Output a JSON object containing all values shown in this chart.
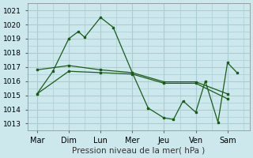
{
  "background_color": "#cce8ec",
  "grid_color": "#aacdd4",
  "line_color": "#1a5c1a",
  "xlabel": "Pression niveau de la mer( hPa )",
  "x_labels": [
    "Mar",
    "Dim",
    "Lun",
    "Mer",
    "Jeu",
    "Ven",
    "Sam"
  ],
  "ylim": [
    1012.5,
    1021.5
  ],
  "yticks": [
    1013,
    1014,
    1015,
    1016,
    1017,
    1018,
    1019,
    1020,
    1021
  ],
  "line1_x": [
    0,
    0.5,
    1.0,
    1.3,
    1.5,
    2.0,
    2.4,
    3.0,
    3.5,
    4.0,
    4.3,
    4.6,
    5.0,
    5.3,
    5.7,
    6.0,
    6.3
  ],
  "line1_y": [
    1015.1,
    1016.7,
    1019.0,
    1019.5,
    1019.1,
    1020.5,
    1019.8,
    1016.6,
    1014.1,
    1013.4,
    1013.3,
    1014.6,
    1013.8,
    1016.0,
    1013.1,
    1017.3,
    1016.6
  ],
  "line2_x": [
    0,
    1,
    2,
    3,
    4,
    5,
    6
  ],
  "line2_y": [
    1016.8,
    1017.1,
    1016.8,
    1016.6,
    1015.95,
    1015.95,
    1015.1
  ],
  "line3_x": [
    0,
    1,
    2,
    3,
    4,
    5,
    6
  ],
  "line3_y": [
    1015.1,
    1016.7,
    1016.6,
    1016.5,
    1015.85,
    1015.85,
    1014.75
  ],
  "xlabel_fontsize": 7.5,
  "ytick_fontsize": 6.5,
  "xtick_fontsize": 7
}
